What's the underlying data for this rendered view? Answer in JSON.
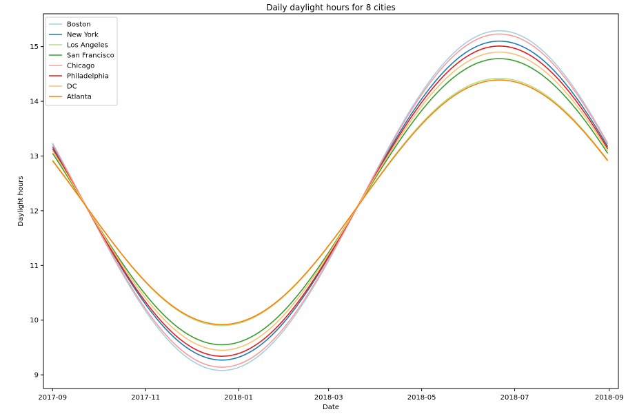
{
  "chart_data": {
    "type": "line",
    "title": "Daily daylight hours for 8 cities",
    "xlabel": "Date",
    "ylabel": "Daylight hours",
    "xlim": [
      "2017-08-26",
      "2018-09-07"
    ],
    "ylim": [
      8.75,
      15.6
    ],
    "x_ticks": [
      "2017-09",
      "2017-11",
      "2018-01",
      "2018-03",
      "2018-05",
      "2018-07",
      "2018-09"
    ],
    "y_ticks": [
      9,
      10,
      11,
      12,
      13,
      14,
      15
    ],
    "x_start": "2017-09-01",
    "x_end": "2018-08-31",
    "legend_position": "top-left",
    "grid": false,
    "series": [
      {
        "name": "Boston",
        "color": "#a6cee3",
        "min": 9.08,
        "max": 15.29,
        "start": 13.15,
        "end": 13.22
      },
      {
        "name": "New York",
        "color": "#1f78b4",
        "min": 9.27,
        "max": 15.1,
        "start": 13.1,
        "end": 13.15
      },
      {
        "name": "Los Angeles",
        "color": "#b2df8a",
        "min": 9.9,
        "max": 14.42,
        "start": 12.88,
        "end": 12.9
      },
      {
        "name": "San Francisco",
        "color": "#33a02c",
        "min": 9.55,
        "max": 14.78,
        "start": 13.0,
        "end": 13.05
      },
      {
        "name": "Chicago",
        "color": "#fb9a99",
        "min": 9.14,
        "max": 15.23,
        "start": 13.14,
        "end": 13.2
      },
      {
        "name": "Philadelphia",
        "color": "#e31a1c",
        "min": 9.34,
        "max": 15.01,
        "start": 13.08,
        "end": 13.12
      },
      {
        "name": "DC",
        "color": "#fdbf6f",
        "min": 9.45,
        "max": 14.9,
        "start": 13.05,
        "end": 13.09
      },
      {
        "name": "Atlanta",
        "color": "#ff7f00",
        "min": 9.92,
        "max": 14.39,
        "start": 12.86,
        "end": 12.89
      }
    ]
  }
}
